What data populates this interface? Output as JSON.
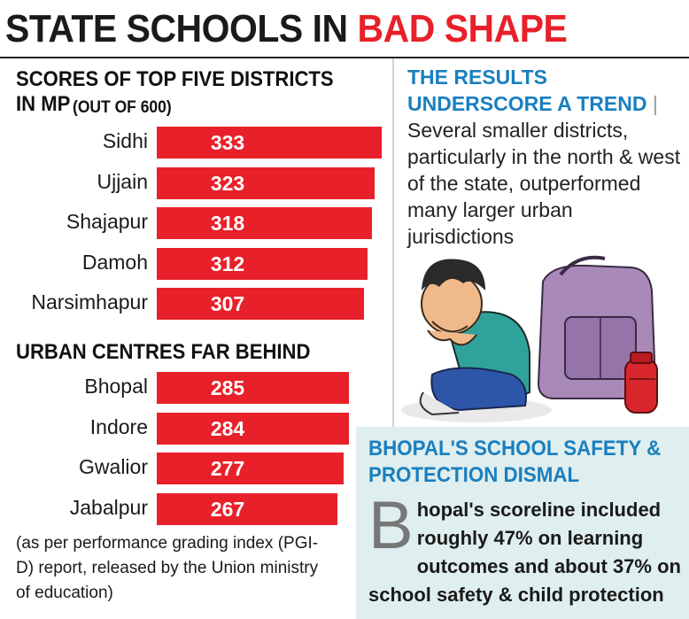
{
  "headline": {
    "part1": "STATE SCHOOLS IN",
    "part2": "BAD SHAPE"
  },
  "colors": {
    "bar": "#e8202a",
    "accent_blue": "#1a7fbf",
    "panel_bg": "#dfeeee"
  },
  "chart_data": [
    {
      "type": "bar",
      "orientation": "horizontal",
      "title": "SCORES OF TOP FIVE DISTRICTS IN MP",
      "subtitle": "(OUT OF 600)",
      "categories": [
        "Sidhi",
        "Ujjain",
        "Shajapur",
        "Damoh",
        "Narsimhapur"
      ],
      "values": [
        333,
        323,
        318,
        312,
        307
      ],
      "value_labels": [
        "333",
        "323",
        "318",
        "312",
        "307"
      ]
    },
    {
      "type": "bar",
      "orientation": "horizontal",
      "title": "URBAN CENTRES FAR BEHIND",
      "categories": [
        "Bhopal",
        "Indore",
        "Gwalior",
        "Jabalpur"
      ],
      "values": [
        285,
        284,
        277,
        267
      ],
      "value_labels": [
        "285",
        "284",
        "277",
        "267"
      ]
    }
  ],
  "footnote": "(as per performance grading index (PGI-D) report, released by the Union ministry of education)",
  "trend": {
    "lead": "THE RESULTS UNDERSCORE A TREND",
    "separator": "|",
    "body": "Several smaller districts, particularly in the north & west of the state, outperformed many larger urban jurisdictions"
  },
  "safety": {
    "title": "BHOPAL'S SCHOOL SAFETY & PROTECTION DISMAL",
    "dropcap": "B",
    "body": "hopal's scoreline included roughly 47% on learning outcomes and about 37% on school safety & child protection"
  },
  "illustration": {
    "icon": "sad-student-with-school-bag-illustration"
  }
}
